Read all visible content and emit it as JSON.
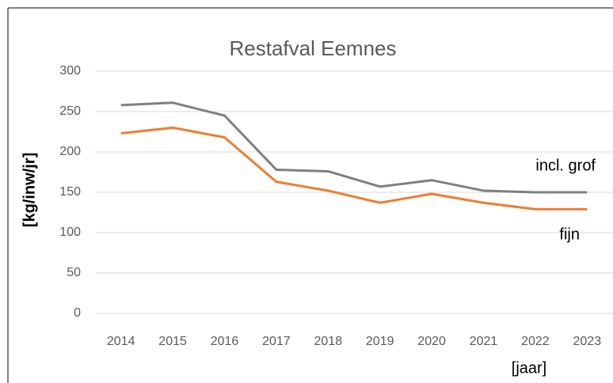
{
  "chart_data": {
    "type": "line",
    "title": "Restafval Eemnes",
    "x_label": "[jaar]",
    "y_label": "[kg/inw/jr]",
    "categories": [
      "2014",
      "2015",
      "2016",
      "2017",
      "2018",
      "2019",
      "2020",
      "2021",
      "2022",
      "2023"
    ],
    "series": [
      {
        "name": "incl. grof",
        "color": "#7f7f7f",
        "values": [
          258,
          261,
          245,
          178,
          176,
          157,
          165,
          152,
          150,
          150
        ]
      },
      {
        "name": "fijn",
        "color": "#ed7d31",
        "values": [
          223,
          230,
          218,
          163,
          152,
          137,
          148,
          137,
          129,
          129
        ]
      }
    ],
    "ylim": [
      0,
      300
    ],
    "yticks": [
      0,
      50,
      100,
      150,
      200,
      250,
      300
    ],
    "grid": true
  }
}
